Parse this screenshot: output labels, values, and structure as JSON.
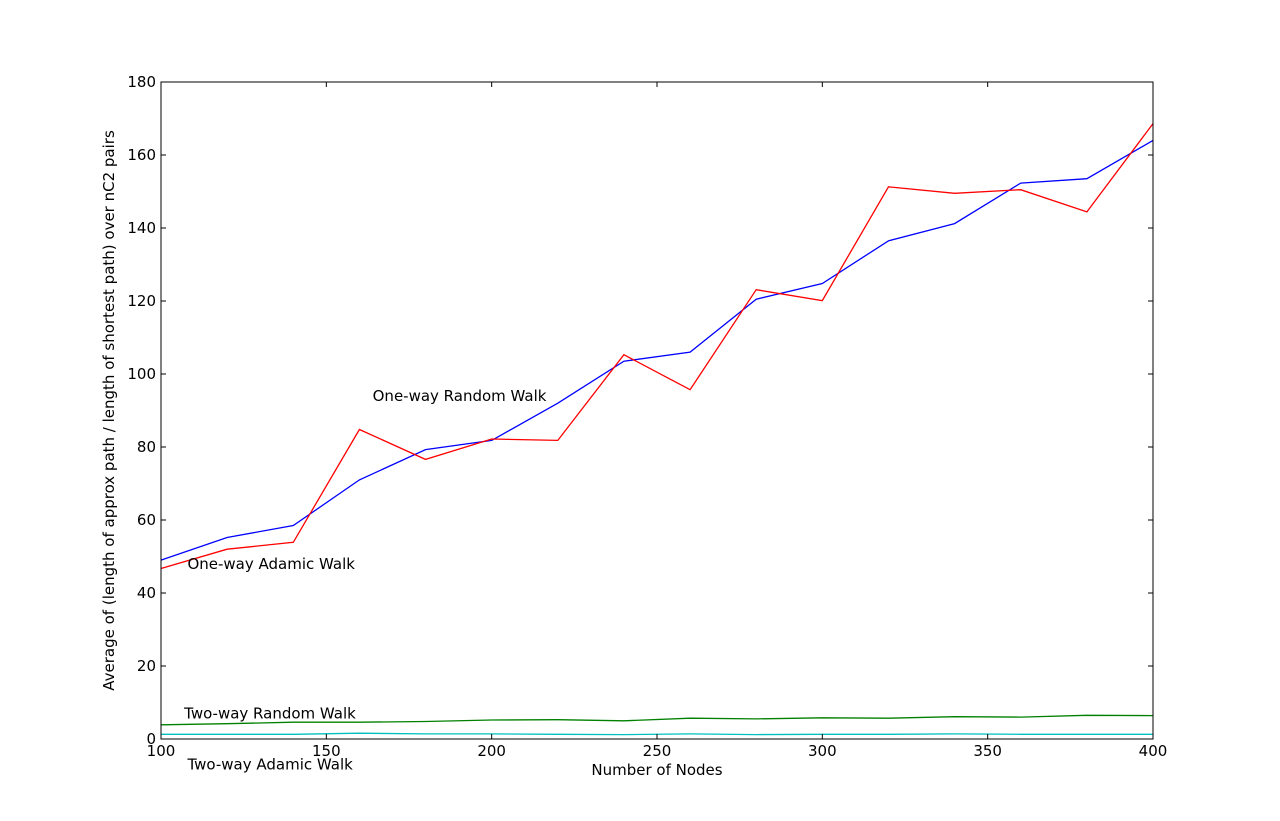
{
  "chart_data": {
    "type": "line",
    "title": "",
    "xlabel": "Number of Nodes",
    "ylabel": "Average of (length of approx path / length of shortest path) over nC2 pairs",
    "xlim": [
      100,
      400
    ],
    "ylim": [
      0,
      180
    ],
    "xticks": [
      100,
      150,
      200,
      250,
      300,
      350,
      400
    ],
    "yticks": [
      0,
      20,
      40,
      60,
      80,
      100,
      120,
      140,
      160,
      180
    ],
    "grid": false,
    "x": [
      100,
      120,
      140,
      160,
      180,
      200,
      220,
      240,
      260,
      280,
      300,
      320,
      340,
      360,
      380,
      400
    ],
    "series": [
      {
        "color": "#0000ff",
        "values": [
          49,
          55.2,
          58.5,
          71,
          79.3,
          81.8,
          92,
          103.5,
          106,
          120.5,
          124.8,
          136.5,
          141.2,
          152.3,
          153.5,
          164
        ]
      },
      {
        "color": "#ff0000",
        "values": [
          46.7,
          52,
          53.9,
          84.8,
          76.6,
          82.2,
          81.8,
          105.3,
          95.7,
          123.1,
          120.1,
          151.3,
          149.5,
          150.5,
          144.4,
          168.6
        ]
      },
      {
        "color": "#008000",
        "values": [
          3.9,
          4.2,
          4.6,
          4.6,
          4.8,
          5.2,
          5.3,
          5,
          5.7,
          5.5,
          5.8,
          5.7,
          6.1,
          6,
          6.5,
          6.4
        ]
      },
      {
        "color": "#00bfbf",
        "values": [
          1.3,
          1.3,
          1.3,
          1.6,
          1.4,
          1.4,
          1.3,
          1.2,
          1.4,
          1.2,
          1.3,
          1.3,
          1.4,
          1.3,
          1.3,
          1.3
        ]
      }
    ],
    "annotations": [
      {
        "text": "One-way Random Walk",
        "x": 164,
        "y": 94
      },
      {
        "text": "One-way Adamic Walk",
        "x": 108,
        "y": 48
      },
      {
        "text": "Two-way Random Walk",
        "x": 107,
        "y": 7
      },
      {
        "text": "Two-way Adamic Walk",
        "x": 108,
        "y": -7
      }
    ]
  }
}
